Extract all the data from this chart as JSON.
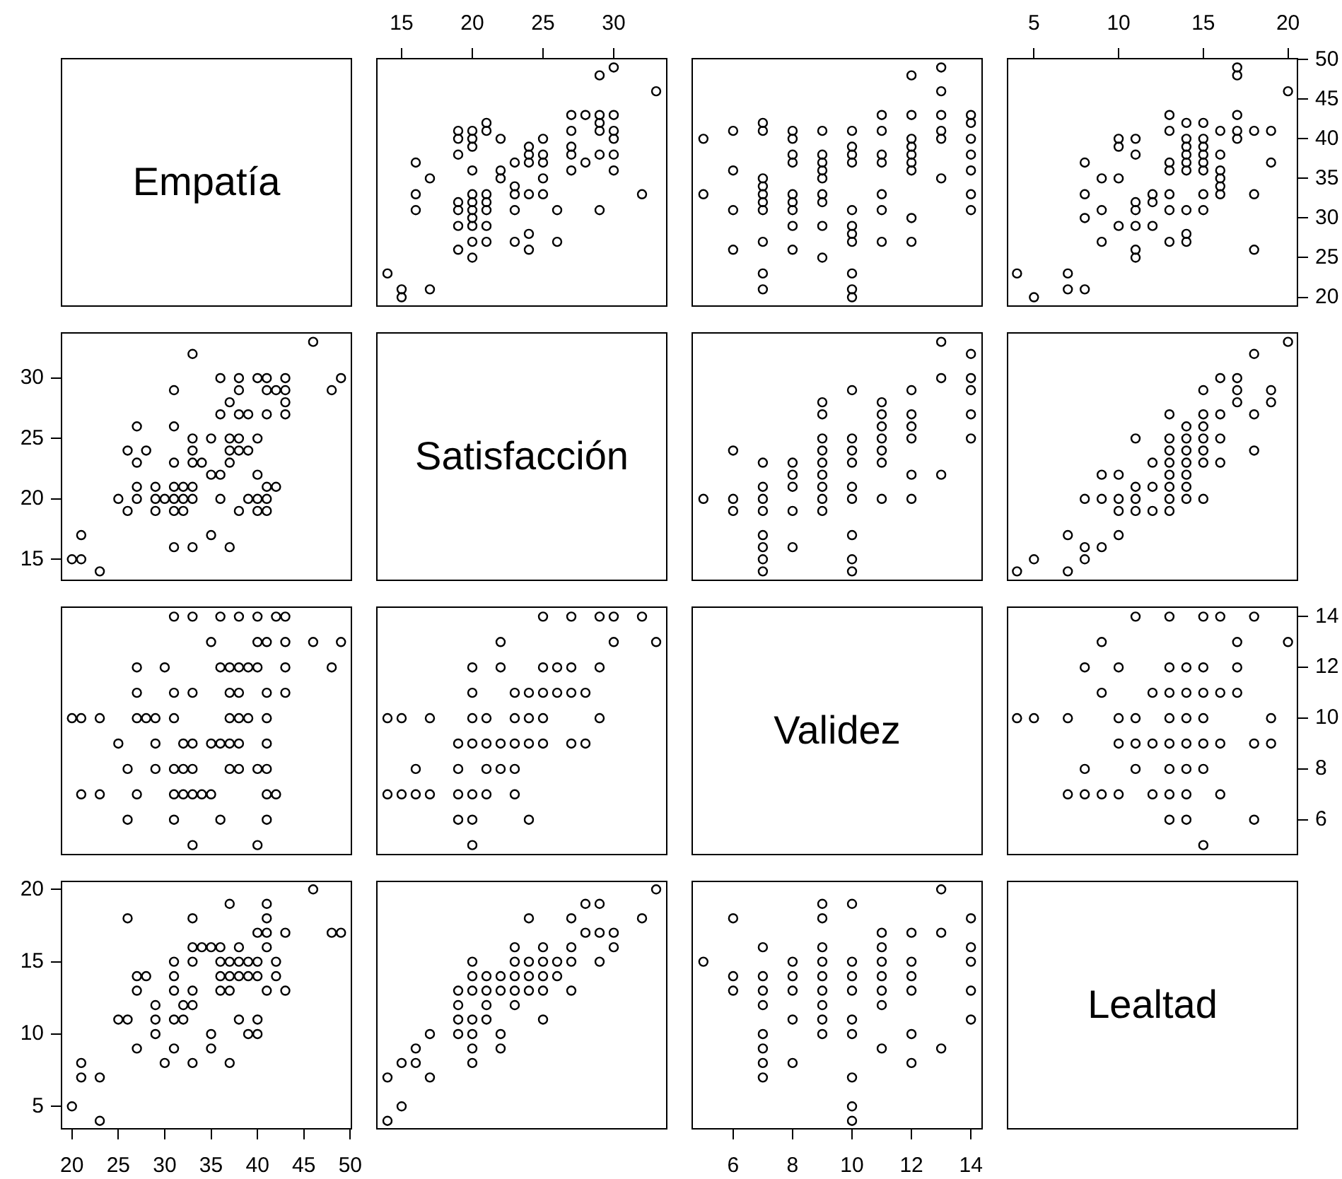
{
  "chart_data": [
    {
      "type": "other",
      "title": "Empatía"
    },
    {
      "type": "scatter",
      "marker": "circle",
      "color": "#000000",
      "xlim": [
        13.2,
        33.8
      ],
      "ylim": [
        18.8,
        50.2
      ],
      "xticks": [
        15,
        20,
        25,
        30
      ],
      "tick_labels": "x",
      "x": [
        33,
        32,
        30,
        30,
        30,
        30,
        30,
        30,
        29,
        29,
        29,
        29,
        29,
        29,
        28,
        28,
        27,
        27,
        27,
        27,
        27,
        26,
        26,
        25,
        25,
        25,
        25,
        25,
        24,
        24,
        24,
        24,
        24,
        24,
        23,
        23,
        23,
        23,
        23,
        22,
        22,
        22,
        21,
        21,
        21,
        21,
        21,
        21,
        21,
        20,
        20,
        20,
        20,
        20,
        20,
        20,
        20,
        20,
        20,
        20,
        19,
        19,
        19,
        19,
        19,
        19,
        19,
        17,
        17,
        16,
        16,
        16,
        15,
        15,
        14
      ],
      "values": [
        46,
        33,
        36,
        38,
        40,
        41,
        43,
        49,
        31,
        38,
        41,
        42,
        43,
        48,
        37,
        43,
        36,
        38,
        39,
        41,
        43,
        27,
        31,
        33,
        35,
        37,
        38,
        40,
        26,
        28,
        33,
        37,
        38,
        39,
        27,
        31,
        33,
        34,
        37,
        35,
        36,
        40,
        27,
        29,
        31,
        32,
        33,
        41,
        42,
        25,
        27,
        29,
        30,
        31,
        32,
        33,
        36,
        39,
        40,
        41,
        26,
        29,
        31,
        32,
        38,
        40,
        41,
        21,
        35,
        31,
        33,
        37,
        20,
        21,
        23
      ]
    },
    {
      "type": "scatter",
      "marker": "circle",
      "color": "#000000",
      "xlim": [
        4.6,
        14.4
      ],
      "ylim": [
        18.8,
        50.2
      ],
      "tick_labels": false,
      "x": [
        14,
        14,
        14,
        14,
        14,
        14,
        14,
        13,
        13,
        13,
        13,
        13,
        13,
        12,
        12,
        12,
        12,
        12,
        12,
        12,
        12,
        12,
        11,
        11,
        11,
        11,
        11,
        11,
        11,
        10,
        10,
        10,
        10,
        10,
        10,
        10,
        10,
        10,
        10,
        10,
        9,
        9,
        9,
        9,
        9,
        9,
        9,
        9,
        9,
        8,
        8,
        8,
        8,
        8,
        8,
        8,
        8,
        8,
        7,
        7,
        7,
        7,
        7,
        7,
        7,
        7,
        7,
        7,
        6,
        6,
        6,
        6,
        5,
        5
      ],
      "values": [
        31,
        33,
        36,
        38,
        40,
        42,
        43,
        35,
        40,
        41,
        43,
        46,
        49,
        27,
        30,
        36,
        37,
        38,
        39,
        40,
        43,
        48,
        27,
        31,
        33,
        37,
        38,
        41,
        43,
        20,
        21,
        23,
        27,
        28,
        29,
        31,
        37,
        38,
        39,
        41,
        25,
        29,
        32,
        33,
        35,
        36,
        37,
        38,
        41,
        26,
        29,
        31,
        32,
        33,
        37,
        38,
        40,
        41,
        21,
        23,
        27,
        31,
        32,
        33,
        34,
        35,
        41,
        42,
        26,
        31,
        36,
        41,
        33,
        40
      ]
    },
    {
      "type": "scatter",
      "marker": "circle",
      "color": "#000000",
      "xlim": [
        3.4,
        20.6
      ],
      "ylim": [
        18.8,
        50.2
      ],
      "xticks": [
        5,
        10,
        15,
        20
      ],
      "yticks": [
        20,
        25,
        30,
        35,
        40,
        45,
        50
      ],
      "x": [
        20,
        19,
        19,
        18,
        18,
        18,
        17,
        17,
        17,
        17,
        17,
        16,
        16,
        16,
        16,
        16,
        16,
        15,
        15,
        15,
        15,
        15,
        15,
        15,
        15,
        14,
        14,
        14,
        14,
        14,
        14,
        14,
        14,
        14,
        13,
        13,
        13,
        13,
        13,
        13,
        13,
        12,
        12,
        12,
        11,
        11,
        11,
        11,
        11,
        11,
        11,
        10,
        10,
        10,
        10,
        9,
        9,
        9,
        8,
        8,
        8,
        8,
        7,
        7,
        5,
        4
      ],
      "values": [
        46,
        37,
        41,
        26,
        33,
        41,
        40,
        41,
        43,
        48,
        49,
        33,
        34,
        35,
        36,
        38,
        41,
        31,
        33,
        36,
        37,
        38,
        39,
        40,
        42,
        27,
        28,
        31,
        36,
        37,
        38,
        39,
        40,
        42,
        27,
        31,
        33,
        36,
        37,
        41,
        43,
        29,
        32,
        33,
        25,
        26,
        29,
        31,
        32,
        38,
        40,
        29,
        35,
        39,
        40,
        27,
        31,
        35,
        21,
        30,
        33,
        37,
        21,
        23,
        20,
        23
      ]
    },
    {
      "type": "scatter",
      "marker": "circle",
      "color": "#000000",
      "xlim": [
        18.8,
        50.2
      ],
      "ylim": [
        13.2,
        33.8
      ],
      "yticks": [
        15,
        20,
        25,
        30
      ],
      "tick_labels": "y",
      "x": [
        46,
        33,
        36,
        38,
        40,
        41,
        43,
        49,
        31,
        38,
        41,
        42,
        43,
        48,
        37,
        43,
        36,
        38,
        39,
        41,
        43,
        27,
        31,
        33,
        35,
        37,
        38,
        40,
        26,
        28,
        33,
        37,
        38,
        39,
        27,
        31,
        33,
        34,
        37,
        35,
        36,
        40,
        27,
        29,
        31,
        32,
        33,
        41,
        42,
        25,
        27,
        29,
        30,
        31,
        32,
        33,
        36,
        39,
        40,
        41,
        26,
        29,
        31,
        32,
        38,
        40,
        41,
        21,
        35,
        31,
        33,
        37,
        20,
        21,
        23
      ],
      "values": [
        33,
        32,
        30,
        30,
        30,
        30,
        30,
        30,
        29,
        29,
        29,
        29,
        29,
        29,
        28,
        28,
        27,
        27,
        27,
        27,
        27,
        26,
        26,
        25,
        25,
        25,
        25,
        25,
        24,
        24,
        24,
        24,
        24,
        24,
        23,
        23,
        23,
        23,
        23,
        22,
        22,
        22,
        21,
        21,
        21,
        21,
        21,
        21,
        21,
        20,
        20,
        20,
        20,
        20,
        20,
        20,
        20,
        20,
        20,
        20,
        19,
        19,
        19,
        19,
        19,
        19,
        19,
        17,
        17,
        16,
        16,
        16,
        15,
        15,
        14
      ]
    },
    {
      "type": "other",
      "title": "Satisfacción"
    },
    {
      "type": "scatter",
      "marker": "circle",
      "color": "#000000",
      "xlim": [
        4.6,
        14.4
      ],
      "ylim": [
        13.2,
        33.8
      ],
      "tick_labels": false,
      "x": [
        14,
        14,
        14,
        14,
        14,
        13,
        13,
        13,
        12,
        12,
        12,
        12,
        12,
        12,
        11,
        11,
        11,
        11,
        11,
        11,
        11,
        10,
        10,
        10,
        10,
        10,
        10,
        10,
        10,
        10,
        9,
        9,
        9,
        9,
        9,
        9,
        9,
        9,
        9,
        8,
        8,
        8,
        8,
        8,
        7,
        7,
        7,
        7,
        7,
        7,
        7,
        7,
        6,
        6,
        6,
        5
      ],
      "values": [
        25,
        27,
        29,
        30,
        32,
        22,
        30,
        33,
        20,
        22,
        25,
        26,
        27,
        29,
        20,
        23,
        24,
        25,
        26,
        27,
        28,
        14,
        15,
        17,
        20,
        21,
        23,
        24,
        25,
        29,
        19,
        20,
        21,
        22,
        23,
        24,
        25,
        27,
        28,
        16,
        19,
        21,
        22,
        23,
        14,
        15,
        16,
        17,
        19,
        20,
        21,
        23,
        19,
        20,
        24,
        20
      ]
    },
    {
      "type": "scatter",
      "marker": "circle",
      "color": "#000000",
      "xlim": [
        3.4,
        20.6
      ],
      "ylim": [
        13.2,
        33.8
      ],
      "tick_labels": false,
      "x": [
        20,
        19,
        19,
        18,
        18,
        18,
        17,
        17,
        17,
        16,
        16,
        16,
        16,
        15,
        15,
        15,
        15,
        15,
        15,
        15,
        14,
        14,
        14,
        14,
        14,
        14,
        14,
        13,
        13,
        13,
        13,
        13,
        13,
        13,
        13,
        12,
        12,
        12,
        11,
        11,
        11,
        11,
        10,
        10,
        10,
        10,
        9,
        9,
        9,
        8,
        8,
        8,
        7,
        7,
        5,
        4
      ],
      "values": [
        33,
        28,
        29,
        24,
        27,
        32,
        28,
        29,
        30,
        23,
        25,
        27,
        30,
        20,
        23,
        24,
        25,
        26,
        27,
        29,
        20,
        21,
        22,
        23,
        24,
        25,
        26,
        19,
        20,
        21,
        22,
        23,
        24,
        25,
        27,
        19,
        21,
        23,
        19,
        20,
        21,
        25,
        17,
        19,
        20,
        22,
        16,
        20,
        22,
        15,
        16,
        20,
        14,
        17,
        15,
        14
      ]
    },
    {
      "type": "scatter",
      "marker": "circle",
      "color": "#000000",
      "xlim": [
        18.8,
        50.2
      ],
      "ylim": [
        4.6,
        14.4
      ],
      "tick_labels": false,
      "x": [
        31,
        33,
        36,
        38,
        40,
        42,
        43,
        35,
        40,
        41,
        43,
        46,
        49,
        27,
        30,
        36,
        37,
        38,
        39,
        40,
        43,
        48,
        27,
        31,
        33,
        37,
        38,
        41,
        43,
        20,
        21,
        23,
        27,
        28,
        29,
        31,
        37,
        38,
        39,
        41,
        25,
        29,
        32,
        33,
        35,
        36,
        37,
        38,
        41,
        26,
        29,
        31,
        32,
        33,
        37,
        38,
        40,
        41,
        21,
        23,
        27,
        31,
        32,
        33,
        34,
        35,
        41,
        42,
        26,
        31,
        36,
        41,
        33,
        40
      ],
      "values": [
        14,
        14,
        14,
        14,
        14,
        14,
        14,
        13,
        13,
        13,
        13,
        13,
        13,
        12,
        12,
        12,
        12,
        12,
        12,
        12,
        12,
        12,
        11,
        11,
        11,
        11,
        11,
        11,
        11,
        10,
        10,
        10,
        10,
        10,
        10,
        10,
        10,
        10,
        10,
        10,
        9,
        9,
        9,
        9,
        9,
        9,
        9,
        9,
        9,
        8,
        8,
        8,
        8,
        8,
        8,
        8,
        8,
        8,
        7,
        7,
        7,
        7,
        7,
        7,
        7,
        7,
        7,
        7,
        6,
        6,
        6,
        6,
        5,
        5
      ]
    },
    {
      "type": "scatter",
      "marker": "circle",
      "color": "#000000",
      "xlim": [
        13.2,
        33.8
      ],
      "ylim": [
        4.6,
        14.4
      ],
      "tick_labels": false,
      "x": [
        25,
        27,
        29,
        30,
        32,
        22,
        30,
        33,
        20,
        22,
        25,
        26,
        27,
        29,
        20,
        23,
        24,
        25,
        26,
        27,
        28,
        14,
        15,
        17,
        20,
        21,
        23,
        24,
        25,
        29,
        19,
        20,
        21,
        22,
        23,
        24,
        25,
        27,
        28,
        16,
        19,
        21,
        22,
        23,
        14,
        15,
        16,
        17,
        19,
        20,
        21,
        23,
        19,
        20,
        24,
        20
      ],
      "values": [
        14,
        14,
        14,
        14,
        14,
        13,
        13,
        13,
        12,
        12,
        12,
        12,
        12,
        12,
        11,
        11,
        11,
        11,
        11,
        11,
        11,
        10,
        10,
        10,
        10,
        10,
        10,
        10,
        10,
        10,
        9,
        9,
        9,
        9,
        9,
        9,
        9,
        9,
        9,
        8,
        8,
        8,
        8,
        8,
        7,
        7,
        7,
        7,
        7,
        7,
        7,
        7,
        6,
        6,
        6,
        5
      ]
    },
    {
      "type": "other",
      "title": "Validez"
    },
    {
      "type": "scatter",
      "marker": "circle",
      "color": "#000000",
      "xlim": [
        3.4,
        20.6
      ],
      "ylim": [
        4.6,
        14.4
      ],
      "yticks": [
        6,
        8,
        10,
        12,
        14
      ],
      "tick_labels": "y",
      "x": [
        15,
        18,
        14,
        13,
        16,
        14,
        13,
        12,
        10,
        9,
        8,
        7,
        15,
        14,
        13,
        11,
        8,
        19,
        18,
        16,
        15,
        14,
        13,
        12,
        11,
        10,
        19,
        15,
        14,
        13,
        11,
        10,
        7,
        5,
        4,
        17,
        16,
        15,
        14,
        13,
        12,
        9,
        17,
        15,
        14,
        13,
        10,
        8,
        20,
        17,
        9,
        18,
        16,
        15,
        13,
        11
      ],
      "values": [
        5,
        6,
        6,
        6,
        7,
        7,
        7,
        7,
        7,
        7,
        7,
        7,
        8,
        8,
        8,
        8,
        8,
        9,
        9,
        9,
        9,
        9,
        9,
        9,
        9,
        9,
        10,
        10,
        10,
        10,
        10,
        10,
        10,
        10,
        10,
        11,
        11,
        11,
        11,
        11,
        11,
        11,
        12,
        12,
        12,
        12,
        12,
        12,
        13,
        13,
        13,
        14,
        14,
        14,
        14,
        14
      ]
    },
    {
      "type": "scatter",
      "marker": "circle",
      "color": "#000000",
      "xlim": [
        18.8,
        50.2
      ],
      "ylim": [
        3.4,
        20.6
      ],
      "xticks": [
        20,
        25,
        30,
        35,
        40,
        45,
        50
      ],
      "yticks": [
        5,
        10,
        15,
        20
      ],
      "x": [
        46,
        37,
        41,
        26,
        33,
        41,
        40,
        41,
        43,
        48,
        49,
        33,
        34,
        35,
        36,
        38,
        41,
        31,
        33,
        36,
        37,
        38,
        39,
        40,
        42,
        27,
        28,
        31,
        36,
        37,
        38,
        39,
        40,
        42,
        27,
        31,
        33,
        36,
        37,
        41,
        43,
        29,
        32,
        33,
        25,
        26,
        29,
        31,
        32,
        38,
        40,
        29,
        35,
        39,
        40,
        27,
        31,
        35,
        21,
        30,
        33,
        37,
        21,
        23,
        20,
        23
      ],
      "values": [
        20,
        19,
        19,
        18,
        18,
        18,
        17,
        17,
        17,
        17,
        17,
        16,
        16,
        16,
        16,
        16,
        16,
        15,
        15,
        15,
        15,
        15,
        15,
        15,
        15,
        14,
        14,
        14,
        14,
        14,
        14,
        14,
        14,
        14,
        13,
        13,
        13,
        13,
        13,
        13,
        13,
        12,
        12,
        12,
        11,
        11,
        11,
        11,
        11,
        11,
        11,
        10,
        10,
        10,
        10,
        9,
        9,
        9,
        8,
        8,
        8,
        8,
        7,
        7,
        5,
        4
      ]
    },
    {
      "type": "scatter",
      "marker": "circle",
      "color": "#000000",
      "xlim": [
        13.2,
        33.8
      ],
      "ylim": [
        3.4,
        20.6
      ],
      "tick_labels": false,
      "x": [
        33,
        28,
        29,
        24,
        27,
        32,
        28,
        29,
        30,
        23,
        25,
        27,
        30,
        20,
        23,
        24,
        25,
        26,
        27,
        29,
        20,
        21,
        22,
        23,
        24,
        25,
        26,
        19,
        20,
        21,
        22,
        23,
        24,
        25,
        27,
        19,
        21,
        23,
        19,
        20,
        21,
        25,
        17,
        19,
        20,
        22,
        16,
        20,
        22,
        15,
        16,
        20,
        14,
        17,
        15,
        14
      ],
      "values": [
        20,
        19,
        19,
        18,
        18,
        18,
        17,
        17,
        17,
        16,
        16,
        16,
        16,
        15,
        15,
        15,
        15,
        15,
        15,
        15,
        14,
        14,
        14,
        14,
        14,
        14,
        14,
        13,
        13,
        13,
        13,
        13,
        13,
        13,
        13,
        12,
        12,
        12,
        11,
        11,
        11,
        11,
        10,
        10,
        10,
        10,
        9,
        9,
        9,
        8,
        8,
        8,
        7,
        7,
        5,
        4
      ]
    },
    {
      "type": "scatter",
      "marker": "circle",
      "color": "#000000",
      "xlim": [
        4.6,
        14.4
      ],
      "ylim": [
        3.4,
        20.6
      ],
      "xticks": [
        6,
        8,
        10,
        12,
        14
      ],
      "tick_labels": "x",
      "x": [
        5,
        6,
        6,
        6,
        7,
        7,
        7,
        7,
        7,
        7,
        7,
        7,
        8,
        8,
        8,
        8,
        8,
        9,
        9,
        9,
        9,
        9,
        9,
        9,
        9,
        9,
        10,
        10,
        10,
        10,
        10,
        10,
        10,
        10,
        10,
        11,
        11,
        11,
        11,
        11,
        11,
        11,
        12,
        12,
        12,
        12,
        12,
        12,
        13,
        13,
        13,
        14,
        14,
        14,
        14,
        14
      ],
      "values": [
        15,
        18,
        14,
        13,
        16,
        14,
        13,
        12,
        10,
        9,
        8,
        7,
        15,
        14,
        13,
        11,
        8,
        19,
        18,
        16,
        15,
        14,
        13,
        12,
        11,
        10,
        19,
        15,
        14,
        13,
        11,
        10,
        7,
        5,
        4,
        17,
        16,
        15,
        14,
        13,
        12,
        9,
        17,
        15,
        14,
        13,
        10,
        8,
        20,
        17,
        9,
        18,
        16,
        15,
        13,
        11
      ]
    },
    {
      "type": "other",
      "title": "Lealtad"
    }
  ]
}
